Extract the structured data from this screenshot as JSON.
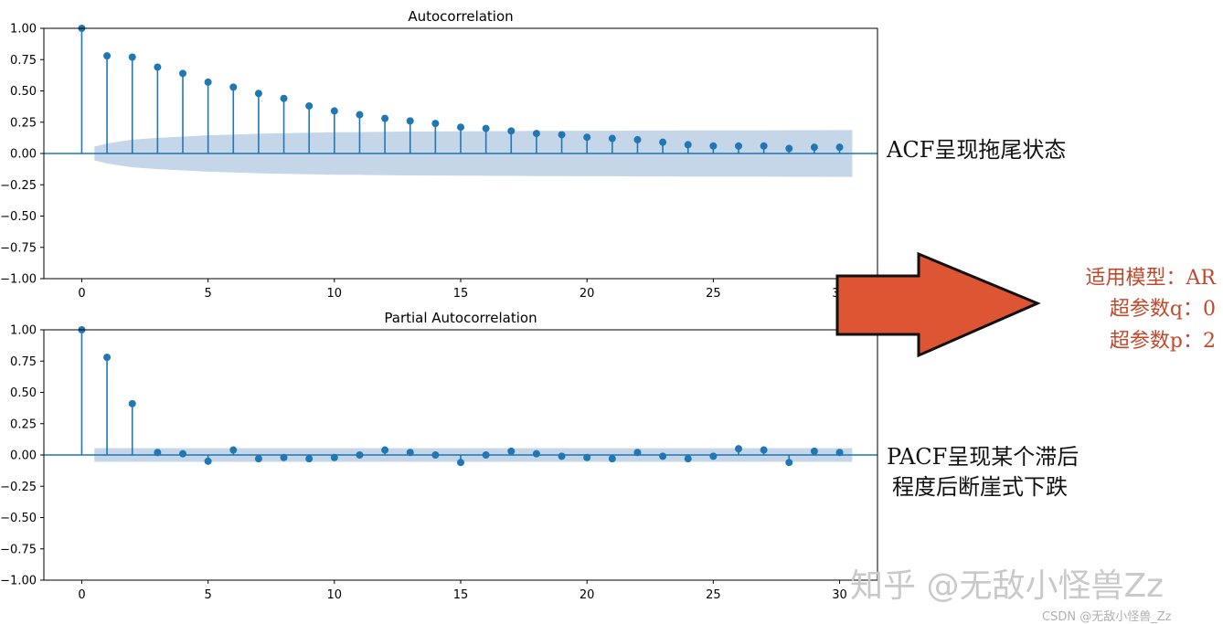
{
  "colors": {
    "stem": "#1f77b4",
    "ci_band": "#c5d6e8",
    "arrow_fill": "#dd5533",
    "annotation_red": "#c0492b",
    "watermark": "#c9c9c9"
  },
  "annotations": {
    "acf_note": "ACF呈现拖尾状态",
    "pacf_note_line1": "PACF呈现某个滞后",
    "pacf_note_line2": "程度后断崖式下跌",
    "arrow_icon": "right-arrow",
    "model_line": "适用模型：AR",
    "q_line": "超参数q：0",
    "p_line": "超参数p：2",
    "watermark": "知乎 @无敌小怪兽Zz",
    "credit": "CSDN @无敌小怪兽_Zz"
  },
  "chart_data": [
    {
      "type": "stem",
      "title": "Autocorrelation",
      "xlim": [
        -1.5,
        31.5
      ],
      "ylim": [
        -1.0,
        1.0
      ],
      "xticks": [
        0,
        5,
        10,
        15,
        20,
        25,
        30
      ],
      "yticks": [
        "1.00",
        "0.75",
        "0.50",
        "0.25",
        "0.00",
        "−0.25",
        "−0.50",
        "−0.75",
        "−1.00"
      ],
      "lags": [
        0,
        1,
        2,
        3,
        4,
        5,
        6,
        7,
        8,
        9,
        10,
        11,
        12,
        13,
        14,
        15,
        16,
        17,
        18,
        19,
        20,
        21,
        22,
        23,
        24,
        25,
        26,
        27,
        28,
        29,
        30
      ],
      "values": [
        1.0,
        0.78,
        0.77,
        0.69,
        0.64,
        0.57,
        0.53,
        0.48,
        0.44,
        0.38,
        0.34,
        0.31,
        0.28,
        0.26,
        0.24,
        0.21,
        0.2,
        0.18,
        0.16,
        0.15,
        0.13,
        0.12,
        0.11,
        0.09,
        0.07,
        0.06,
        0.06,
        0.06,
        0.04,
        0.05,
        0.05
      ],
      "confidence_band": {
        "x": [
          0.5,
          1,
          2,
          3,
          4,
          5,
          6,
          7,
          8,
          9,
          10,
          11,
          12,
          13,
          14,
          15,
          16,
          17,
          18,
          19,
          20,
          21,
          22,
          23,
          24,
          25,
          26,
          27,
          28,
          29,
          30,
          30.5
        ],
        "upper": [
          0.055,
          0.08,
          0.11,
          0.125,
          0.135,
          0.145,
          0.152,
          0.158,
          0.162,
          0.166,
          0.169,
          0.171,
          0.173,
          0.175,
          0.176,
          0.177,
          0.178,
          0.179,
          0.18,
          0.181,
          0.182,
          0.182,
          0.183,
          0.183,
          0.184,
          0.184,
          0.185,
          0.185,
          0.186,
          0.186,
          0.187,
          0.187
        ]
      }
    },
    {
      "type": "stem",
      "title": "Partial Autocorrelation",
      "xlim": [
        -1.5,
        31.5
      ],
      "ylim": [
        -1.0,
        1.0
      ],
      "xticks": [
        0,
        5,
        10,
        15,
        20,
        25,
        30
      ],
      "yticks": [
        "1.00",
        "0.75",
        "0.50",
        "0.25",
        "0.00",
        "−0.25",
        "−0.50",
        "−0.75",
        "−1.00"
      ],
      "lags": [
        0,
        1,
        2,
        3,
        4,
        5,
        6,
        7,
        8,
        9,
        10,
        11,
        12,
        13,
        14,
        15,
        16,
        17,
        18,
        19,
        20,
        21,
        22,
        23,
        24,
        25,
        26,
        27,
        28,
        29,
        30
      ],
      "values": [
        1.0,
        0.78,
        0.41,
        0.02,
        0.01,
        -0.05,
        0.04,
        -0.03,
        -0.02,
        -0.03,
        -0.02,
        0.0,
        0.04,
        0.02,
        0.0,
        -0.06,
        0.0,
        0.03,
        0.01,
        -0.01,
        -0.02,
        -0.03,
        0.02,
        -0.01,
        -0.03,
        -0.01,
        0.05,
        0.04,
        -0.06,
        0.03,
        0.02
      ],
      "confidence_band": {
        "x": [
          0.5,
          30.5
        ],
        "upper": [
          0.055,
          0.055
        ]
      }
    }
  ]
}
